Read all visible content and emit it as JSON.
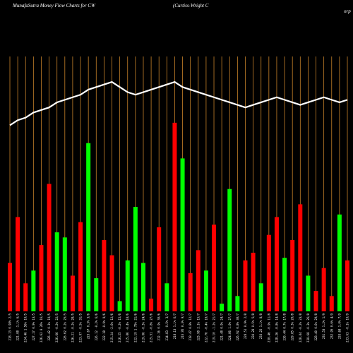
{
  "chart_data": {
    "type": "bar",
    "title": "MunafaSutra  Money Flow  Charts for CW",
    "subtitle": "(Curtiss-Wright C",
    "subtitle_tail": "orp",
    "ylim": [
      0,
      100
    ],
    "categories": [
      "218.13 0.98% 2/5",
      "221.08 -1.1% 6/5",
      "224.46 1.56% 10/5",
      "227.17 0.9% 13/5",
      "226.62 0.26% 16/5",
      "226.42 0.1% 19/5",
      "226.66 -0.2% 22/5",
      "226.62 0.2% 25/5",
      "226.21 -0.2% 28/5",
      "223.97 -0.5% 31/5",
      "223.67 0.3% 3/6",
      "226.12 -0.2% 6/6",
      "222.18 -0.9% 9/6",
      "215.24 -2.6% 12/6",
      "216.25 -0.2% 15/6",
      "215.86 -0.4% 18/6",
      "222.19 1.75% 21/6",
      "219.06 -0.3% 24/6",
      "215.51 -0.8% 27/6",
      "212.16 0.9% 30/6",
      "214.83 -0.5% 3/7",
      "218.13 1.1% 6/7",
      "216.95 0.3% 9/7",
      "218.47 0.8% 12/7",
      "223.98 2.1% 15/7",
      "222.76 -0.4% 18/7",
      "219.10 -1.2% 21/7",
      "221.48 0.9% 24/7",
      "224.86 1.0% 27/7",
      "226.92 0.8% 30/7",
      "228.51 0.9% 2/8",
      "230.28 0.5% 5/8",
      "233.25 1.1% 8/8",
      "230.46 -0.9% 11/8",
      "228.26 -0.8% 14/8",
      "230.44 0.7% 17/8",
      "229.85 0.3% 20/8",
      "228.84 -0.2% 23/8",
      "230.68 -0.3% 26/8",
      "228.40 0.6% 29/8",
      "231.53 1.2% 1/9",
      "232.95 0.6% 4/9",
      "233.68 1.0% 7/9",
      "233.63 -0.1% 10/9"
    ],
    "series": [
      {
        "values": [
          19,
          37,
          11,
          16,
          26,
          50,
          31,
          29,
          14,
          35,
          66,
          13,
          28,
          22,
          4,
          20,
          41,
          19,
          5,
          33,
          11,
          74,
          60,
          15,
          24,
          16,
          34,
          3,
          48,
          6,
          20,
          23,
          11,
          30,
          37,
          21,
          28,
          42,
          14,
          8,
          17,
          6,
          38,
          20
        ]
      },
      {
        "values": [
          73,
          75,
          76,
          78,
          79,
          80,
          82,
          83,
          84,
          85,
          87,
          88,
          89,
          90,
          88,
          86,
          85,
          86,
          87,
          88,
          89,
          90,
          88,
          87,
          86,
          85,
          84,
          83,
          82,
          81,
          80,
          81,
          82,
          83,
          84,
          83,
          82,
          81,
          82,
          83,
          84,
          83,
          82,
          83
        ]
      }
    ],
    "bar_direction": [
      "down",
      "down",
      "down",
      "up",
      "down",
      "down",
      "up",
      "up",
      "down",
      "down",
      "up",
      "up",
      "down",
      "down",
      "up",
      "up",
      "up",
      "up",
      "down",
      "down",
      "up",
      "down",
      "up",
      "down",
      "down",
      "up",
      "down",
      "up",
      "up",
      "up",
      "down",
      "down",
      "up",
      "down",
      "down",
      "up",
      "down",
      "down",
      "up",
      "down",
      "down",
      "down",
      "up",
      "down"
    ],
    "grid": true,
    "colors": {
      "background": "#000000",
      "gridline": "#c8832a",
      "bar_up": "#00ff00",
      "bar_down": "#ff0000",
      "line": "#ffffff",
      "text": "#ffffff"
    }
  }
}
